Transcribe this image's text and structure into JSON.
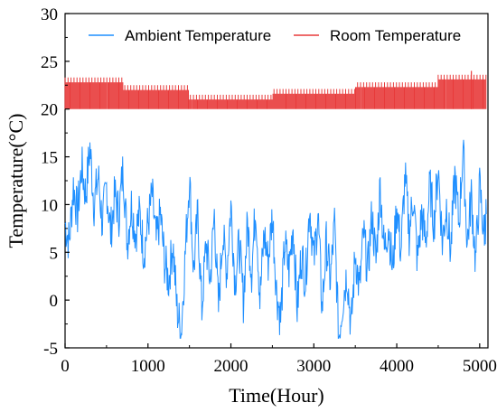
{
  "chart_data": {
    "type": "line",
    "xlabel": "Time(Hour)",
    "ylabel": "Temperature(°C)",
    "xlim": [
      0,
      5100
    ],
    "ylim": [
      -5,
      30
    ],
    "xticks": [
      0,
      1000,
      2000,
      3000,
      4000,
      5000
    ],
    "yticks": [
      -5,
      0,
      5,
      10,
      15,
      20,
      25,
      30
    ],
    "grid": false,
    "legend_position": "top",
    "series": [
      {
        "name": "Ambient Temperature",
        "color": "#1f8fff",
        "x": [
          0,
          50,
          100,
          150,
          200,
          250,
          300,
          350,
          400,
          450,
          500,
          550,
          600,
          650,
          700,
          750,
          800,
          850,
          900,
          950,
          1000,
          1050,
          1100,
          1150,
          1200,
          1250,
          1300,
          1350,
          1400,
          1450,
          1500,
          1550,
          1600,
          1650,
          1700,
          1750,
          1800,
          1850,
          1900,
          1950,
          2000,
          2050,
          2100,
          2150,
          2200,
          2250,
          2300,
          2350,
          2400,
          2450,
          2500,
          2550,
          2600,
          2650,
          2700,
          2750,
          2800,
          2850,
          2900,
          2950,
          3000,
          3050,
          3100,
          3150,
          3200,
          3250,
          3300,
          3350,
          3400,
          3450,
          3500,
          3550,
          3600,
          3650,
          3700,
          3750,
          3800,
          3850,
          3900,
          3950,
          4000,
          4050,
          4100,
          4150,
          4200,
          4250,
          4300,
          4350,
          4400,
          4450,
          4500,
          4550,
          4600,
          4650,
          4700,
          4750,
          4800,
          4850,
          4900,
          4950,
          5000,
          5050,
          5080
        ],
        "y": [
          8,
          6,
          12,
          9,
          14,
          11,
          16,
          10,
          13,
          8,
          12,
          7,
          11,
          9,
          14,
          6,
          10,
          7,
          9,
          5,
          8,
          11,
          6,
          9,
          4,
          2,
          6,
          -1,
          -3.5,
          5,
          13,
          3,
          9,
          -1,
          6,
          2,
          9,
          -1,
          7,
          3,
          10,
          2,
          6,
          0,
          8,
          3,
          10,
          0,
          7,
          4,
          9,
          1,
          -2,
          6,
          3,
          8,
          -1,
          5,
          2,
          10,
          4,
          9,
          -1,
          6,
          2,
          8,
          -4,
          0,
          3,
          -3,
          5,
          1,
          7,
          3,
          9,
          4,
          12,
          5,
          8,
          3,
          10,
          5,
          13,
          7,
          11,
          4,
          9,
          6,
          12,
          8,
          14,
          6,
          10,
          5,
          13,
          8,
          16,
          6,
          11,
          4,
          12,
          7,
          9
        ]
      },
      {
        "name": "Room Temperature",
        "color": "#e83a3a",
        "x": [
          0,
          5080
        ],
        "y": [
          20,
          23
        ],
        "min": 20,
        "max": 24
      }
    ]
  }
}
